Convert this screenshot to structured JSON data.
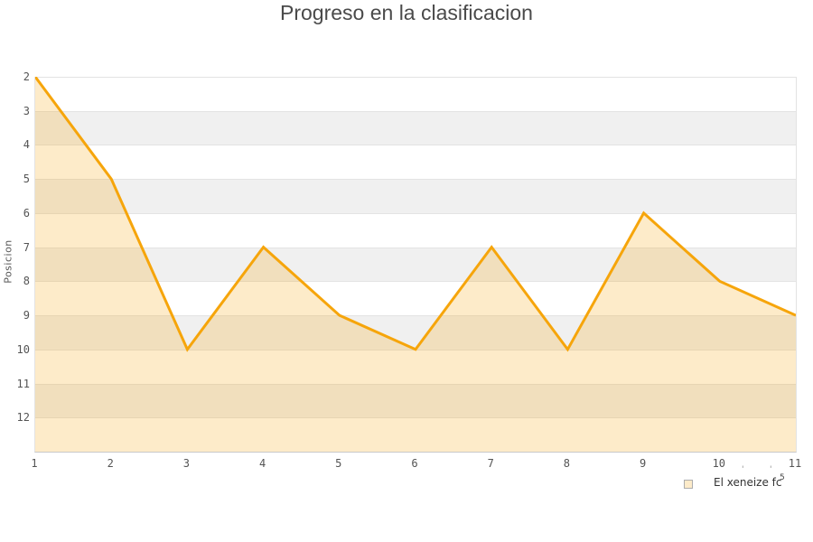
{
  "title": "Progreso en la clasificacion",
  "chart_data": {
    "type": "area",
    "title": "Progreso en la clasificacion",
    "xlabel": "",
    "ylabel": "Posicion",
    "x": [
      1,
      2,
      3,
      4,
      5,
      6,
      7,
      8,
      9,
      10,
      11
    ],
    "series": [
      {
        "name": "El xeneize fc",
        "values": [
          2,
          5,
          10,
          7,
          9,
          10,
          7,
          10,
          6,
          8,
          9
        ]
      }
    ],
    "y_ticks": [
      2,
      3,
      4,
      5,
      6,
      7,
      8,
      9,
      10,
      11,
      12
    ],
    "ylim": [
      2,
      13
    ],
    "y_axis_reversed": true,
    "grid": "horizontal-bands",
    "legend_position": "bottom-right"
  },
  "legend": {
    "label": "El xeneize fc",
    "superscript": "5",
    "marks": [
      "'",
      "'"
    ]
  },
  "colors": {
    "line": "#f6a50b",
    "fill": "rgba(246,165,11,0.22)",
    "band_gray": "#f0f0f0",
    "band_white": "#ffffff",
    "gridline": "#e3e3e3",
    "axis_line": "#c9c9c9",
    "tick_text": "#545454",
    "title_text": "#4a4a4a",
    "legend_swatch_fill": "#fdebc9",
    "legend_swatch_border": "#adadad"
  }
}
